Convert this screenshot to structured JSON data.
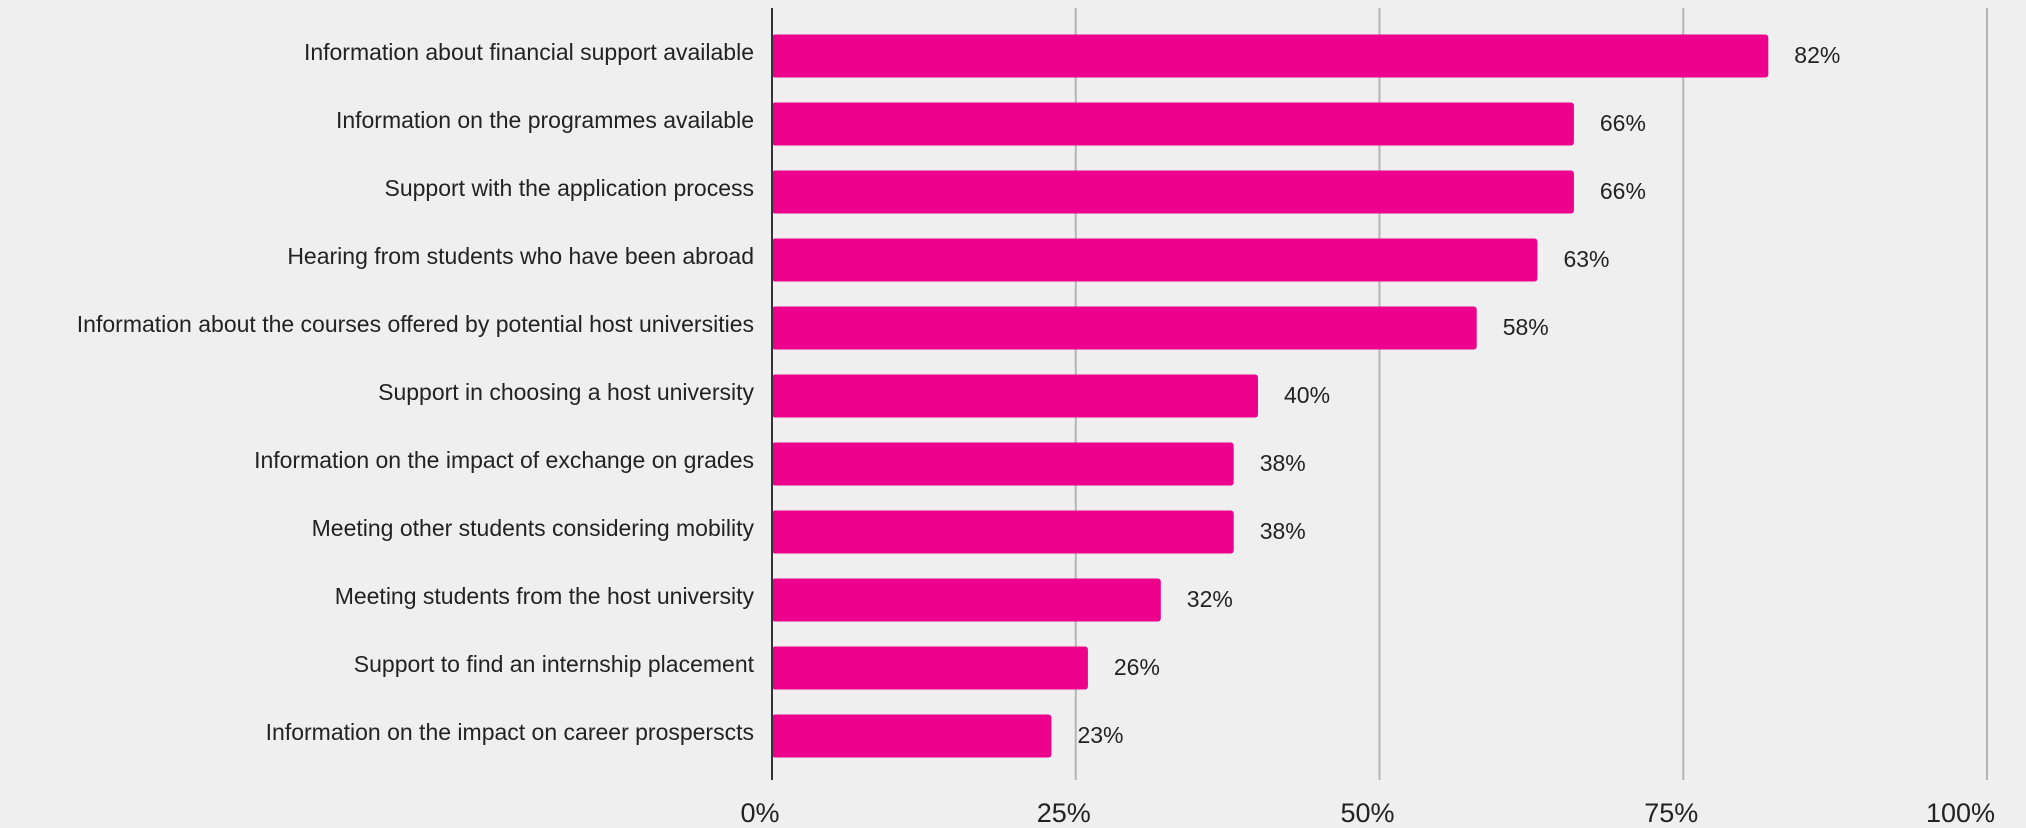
{
  "chart_data": {
    "type": "bar",
    "orientation": "horizontal",
    "categories": [
      "Information about financial support available",
      "Information on the programmes available",
      "Support with the application process",
      "Hearing from students who have been abroad",
      "Information about the courses offered by potential host universities",
      "Support in choosing a host university",
      "Information on the impact of exchange on grades",
      "Meeting other students considering mobility",
      "Meeting students from the host university",
      "Support to find an internship placement",
      "Information on the impact on career prosperscts"
    ],
    "values": [
      82,
      66,
      66,
      63,
      58,
      40,
      38,
      38,
      32,
      26,
      23
    ],
    "value_labels": [
      "82%",
      "66%",
      "66%",
      "63%",
      "58%",
      "40%",
      "38%",
      "38%",
      "32%",
      "26%",
      "23%"
    ],
    "color": "#ec008c",
    "xlim": [
      0,
      100
    ],
    "xticks": [
      {
        "value": 0,
        "label": "0%"
      },
      {
        "value": 25,
        "label": "25%"
      },
      {
        "value": 50,
        "label": "50%"
      },
      {
        "value": 75,
        "label": "75%"
      },
      {
        "value": 100,
        "label": "100%"
      }
    ],
    "grid": true
  }
}
